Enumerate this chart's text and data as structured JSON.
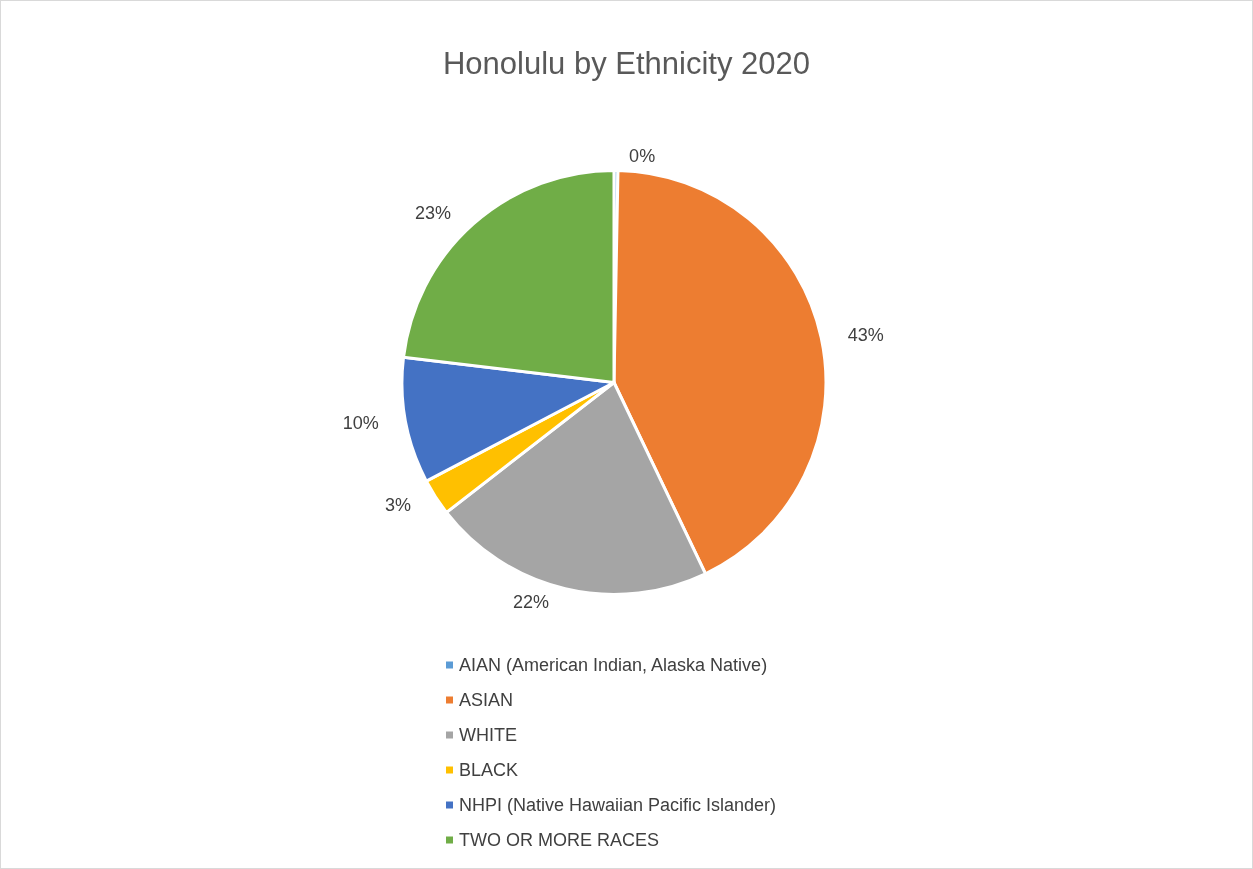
{
  "chart_data": {
    "type": "pie",
    "title": "Honolulu by Ethnicity 2020",
    "categories": [
      "AIAN (American Indian, Alaska Native)",
      "ASIAN",
      "WHITE",
      "BLACK",
      "NHPI (Native Hawaiian Pacific Islander)",
      "TWO OR MORE RACES"
    ],
    "values": [
      0.3,
      42.6,
      21.6,
      2.8,
      9.6,
      23.1
    ],
    "value_labels": [
      "0%",
      "43%",
      "22%",
      "3%",
      "10%",
      "23%"
    ],
    "colors": [
      "#5b9bd5",
      "#ed7d31",
      "#a5a5a5",
      "#ffc000",
      "#4472c4",
      "#70ad47"
    ],
    "legend": "bottom"
  }
}
